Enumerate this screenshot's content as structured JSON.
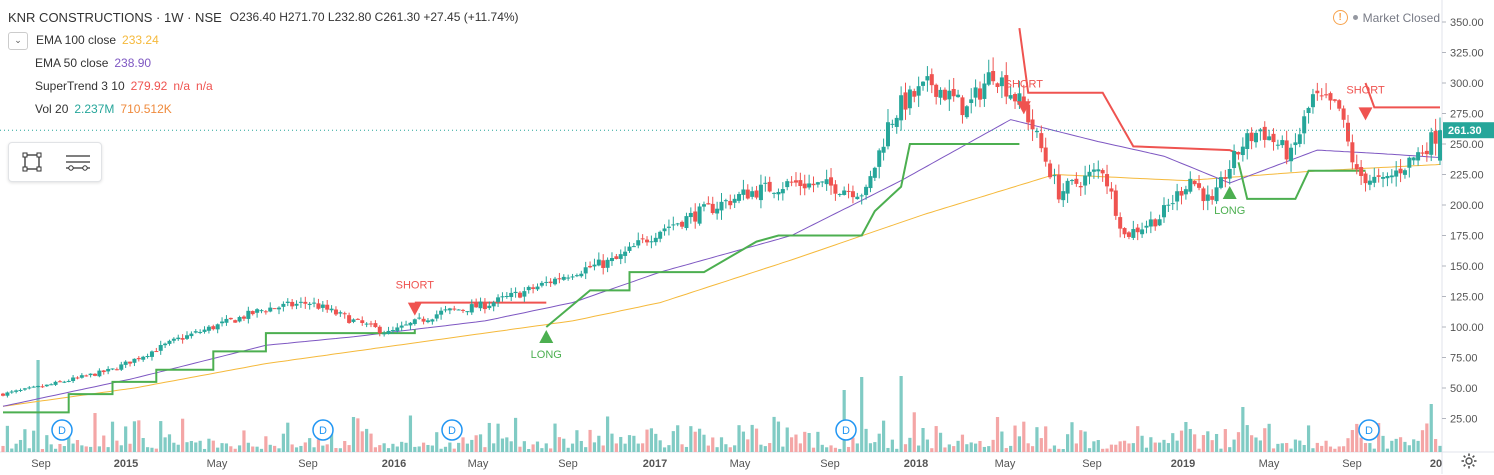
{
  "header": {
    "title": "KNR CONSTRUCTIONS · 1W · NSE",
    "open_label": "O",
    "open": "236.40",
    "high_label": "H",
    "high": "271.70",
    "low_label": "L",
    "low": "232.80",
    "close_label": "C",
    "close": "261.30",
    "change": "+27.45 (+11.74%)"
  },
  "indicators": [
    {
      "name": "EMA 100 close",
      "values": [
        "233.24"
      ],
      "colors": [
        "#f5b93b"
      ]
    },
    {
      "name": "EMA 50 close",
      "values": [
        "238.90"
      ],
      "colors": [
        "#7e57c2"
      ]
    },
    {
      "name": "SuperTrend 3 10",
      "values": [
        "279.92",
        "n/a",
        "n/a"
      ],
      "colors": [
        "#ef5350",
        "#ef5350",
        "#ef5350"
      ]
    },
    {
      "name": "Vol 20",
      "values": [
        "2.237M",
        "710.512K"
      ],
      "colors": [
        "#26a69a",
        "#ef8a3c"
      ]
    }
  ],
  "status": {
    "text": "Market Closed",
    "warn_glyph": "!"
  },
  "icons": [
    "chevron-down-icon",
    "rectangle-tool-icon",
    "lines-tool-icon",
    "warning-icon",
    "settings-icon"
  ],
  "colors": {
    "up": "#26a69a",
    "down": "#ef5350",
    "ema100": "#f5b93b",
    "ema50": "#7e57c2",
    "st_long": "#4caf50",
    "st_short": "#ef5350",
    "vol_up": "#80cbc4",
    "vol_down": "#f4a6a6",
    "dividend": "#2196f3",
    "last_price_bg": "#26a69a"
  },
  "chart_data": {
    "type": "candlestick",
    "interval": "1W",
    "y_ticks": [
      25,
      50,
      75,
      100,
      125,
      150,
      175,
      200,
      225,
      250,
      275,
      300,
      325,
      350
    ],
    "y_tick_labels": [
      "25.00",
      "50.00",
      "75.00",
      "100.00",
      "125.00",
      "150.00",
      "175.00",
      "200.00",
      "225.00",
      "250.00",
      "275.00",
      "300.00",
      "325.00",
      "350.00"
    ],
    "x_tick_labels": [
      "Sep",
      "2015",
      "May",
      "Sep",
      "2016",
      "May",
      "Sep",
      "2017",
      "May",
      "Sep",
      "2018",
      "May",
      "Sep",
      "2019",
      "May",
      "Sep",
      "20"
    ],
    "last_price": 261.3,
    "last_price_label": "261.30",
    "close_anchors": [
      [
        0,
        45
      ],
      [
        10,
        52
      ],
      [
        25,
        65
      ],
      [
        40,
        90
      ],
      [
        60,
        115
      ],
      [
        70,
        120
      ],
      [
        80,
        105
      ],
      [
        88,
        95
      ],
      [
        100,
        112
      ],
      [
        110,
        118
      ],
      [
        120,
        130
      ],
      [
        130,
        145
      ],
      [
        140,
        155
      ],
      [
        150,
        180
      ],
      [
        160,
        195
      ],
      [
        170,
        210
      ],
      [
        180,
        218
      ],
      [
        190,
        215
      ],
      [
        197,
        210
      ],
      [
        202,
        265
      ],
      [
        205,
        282
      ],
      [
        212,
        300
      ],
      [
        220,
        278
      ],
      [
        226,
        310
      ],
      [
        233,
        280
      ],
      [
        236,
        255
      ],
      [
        241,
        210
      ],
      [
        251,
        230
      ],
      [
        256,
        175
      ],
      [
        264,
        190
      ],
      [
        271,
        222
      ],
      [
        276,
        200
      ],
      [
        279,
        225
      ],
      [
        283,
        250
      ],
      [
        287,
        262
      ],
      [
        294,
        240
      ],
      [
        299,
        288
      ],
      [
        305,
        278
      ],
      [
        307,
        250
      ],
      [
        309,
        225
      ],
      [
        315,
        218
      ],
      [
        324,
        245
      ],
      [
        328,
        261.3
      ]
    ],
    "ema100_anchors": [
      [
        0,
        35
      ],
      [
        30,
        50
      ],
      [
        60,
        70
      ],
      [
        80,
        80
      ],
      [
        110,
        95
      ],
      [
        130,
        105
      ],
      [
        150,
        120
      ],
      [
        180,
        155
      ],
      [
        210,
        192
      ],
      [
        240,
        225
      ],
      [
        270,
        220
      ],
      [
        300,
        228
      ],
      [
        328,
        233.24
      ]
    ],
    "ema50_anchors": [
      [
        0,
        35
      ],
      [
        30,
        58
      ],
      [
        60,
        85
      ],
      [
        80,
        92
      ],
      [
        110,
        105
      ],
      [
        130,
        120
      ],
      [
        150,
        145
      ],
      [
        180,
        175
      ],
      [
        205,
        220
      ],
      [
        230,
        270
      ],
      [
        250,
        252
      ],
      [
        265,
        240
      ],
      [
        280,
        218
      ],
      [
        300,
        245
      ],
      [
        315,
        242
      ],
      [
        328,
        238.9
      ]
    ],
    "supertrend": [
      {
        "dir": "long",
        "points": [
          [
            0,
            30
          ],
          [
            15,
            30
          ],
          [
            15,
            45
          ],
          [
            25,
            45
          ],
          [
            25,
            55
          ],
          [
            35,
            55
          ],
          [
            35,
            65
          ],
          [
            48,
            65
          ],
          [
            48,
            80
          ],
          [
            60,
            80
          ],
          [
            60,
            95
          ],
          [
            94,
            95
          ],
          [
            94,
            98
          ]
        ]
      },
      {
        "dir": "short",
        "points": [
          [
            94,
            120
          ],
          [
            124,
            120
          ]
        ]
      },
      {
        "dir": "long",
        "points": [
          [
            124,
            100
          ],
          [
            134,
            130
          ],
          [
            143,
            130
          ],
          [
            143,
            145
          ],
          [
            160,
            145
          ],
          [
            172,
            170
          ],
          [
            177,
            175
          ],
          [
            196,
            175
          ],
          [
            199,
            195
          ],
          [
            205,
            215
          ],
          [
            207,
            250
          ],
          [
            232,
            250
          ]
        ]
      },
      {
        "dir": "short",
        "points": [
          [
            232,
            345
          ],
          [
            234,
            292
          ],
          [
            251,
            292
          ],
          [
            258,
            248
          ],
          [
            280,
            245
          ],
          [
            282,
            242
          ]
        ]
      },
      {
        "dir": "long",
        "points": [
          [
            282,
            235
          ],
          [
            284,
            205
          ],
          [
            295,
            205
          ],
          [
            298,
            228
          ],
          [
            311,
            228
          ]
        ]
      },
      {
        "dir": "short",
        "points": [
          [
            311,
            300
          ],
          [
            313,
            280
          ],
          [
            328,
            280
          ]
        ]
      }
    ],
    "signals": [
      {
        "type": "SHORT",
        "label": "SHORT",
        "bar": 94,
        "value": 120
      },
      {
        "type": "LONG",
        "label": "LONG",
        "bar": 124,
        "value": 100
      },
      {
        "type": "SHORT",
        "label": "SHORT",
        "bar": 233,
        "value": 285
      },
      {
        "type": "LONG",
        "label": "LONG",
        "bar": 280,
        "value": 218
      },
      {
        "type": "SHORT",
        "label": "SHORT",
        "bar": 311,
        "value": 280
      }
    ],
    "dividend_label": "D",
    "dividend_bars": [
      14,
      73,
      103,
      193,
      314
    ],
    "volume_spikes": [
      [
        8,
        92
      ],
      [
        192,
        62
      ],
      [
        196,
        75
      ],
      [
        205,
        76
      ],
      [
        227,
        35
      ],
      [
        270,
        30
      ],
      [
        283,
        45
      ],
      [
        326,
        48
      ]
    ]
  }
}
